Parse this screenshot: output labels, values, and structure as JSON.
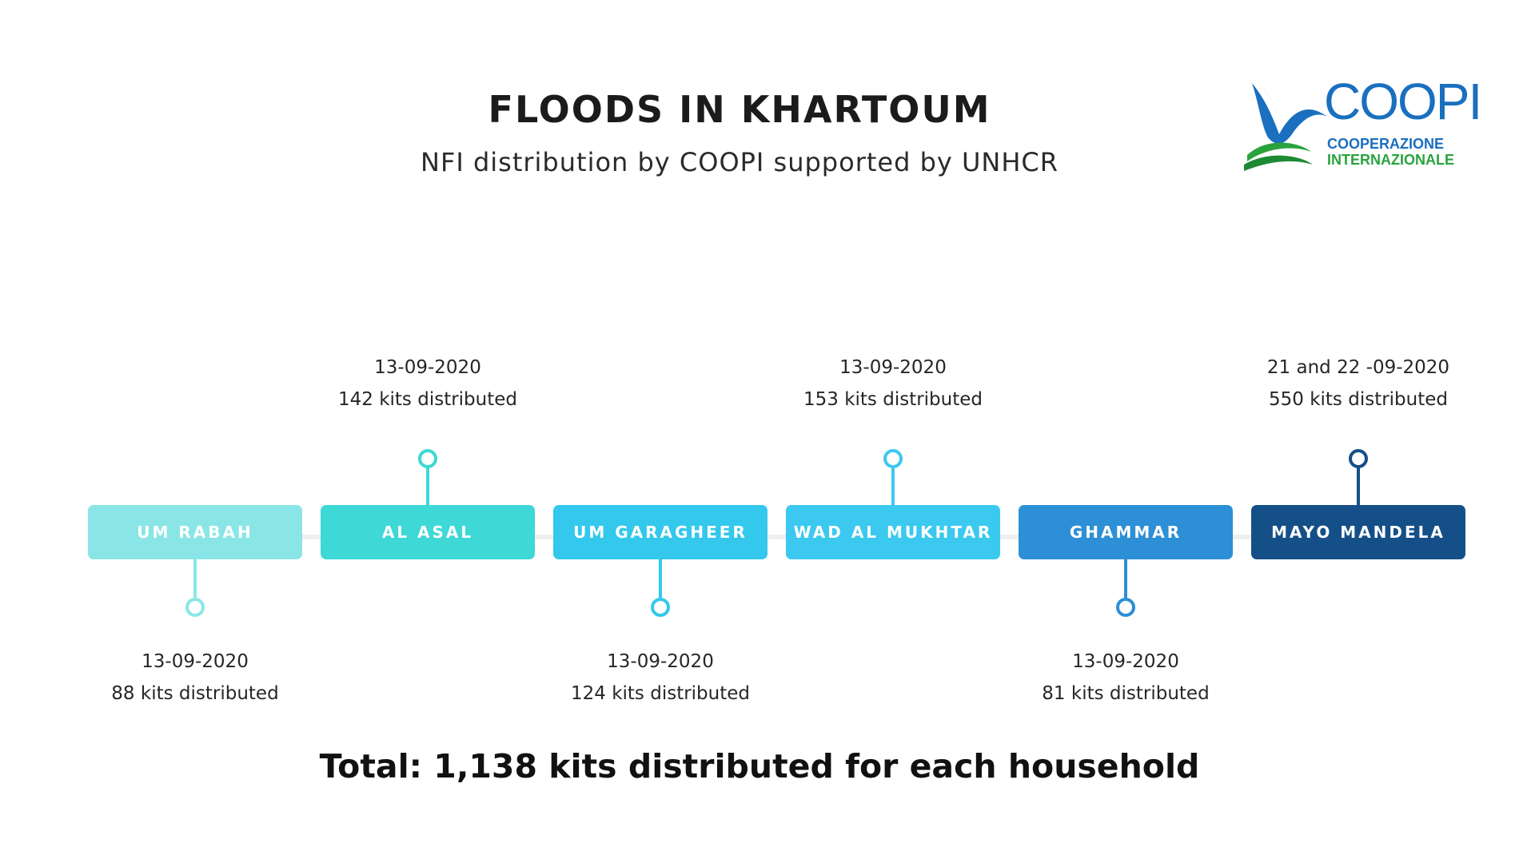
{
  "title": "FLOODS IN KHARTOUM",
  "subtitle": "NFI distribution by COOPI supported by UNHCR",
  "logo": {
    "word": "COOPI",
    "line1": "COOPERAZIONE",
    "line2": "INTERNAZIONALE",
    "colors": {
      "blue": "#1a6fbf",
      "green": "#2aa33e"
    }
  },
  "timeline": [
    {
      "name": "UM RABAH",
      "date": "13-09-2020",
      "kits": "88 kits distributed",
      "position": "below",
      "color": "#8ae6e6"
    },
    {
      "name": "AL ASAL",
      "date": "13-09-2020",
      "kits": "142 kits distributed",
      "position": "above",
      "color": "#3ed8d6"
    },
    {
      "name": "UM GARAGHEER",
      "date": "13-09-2020",
      "kits": "124 kits distributed",
      "position": "below",
      "color": "#33c8ec"
    },
    {
      "name": "WAD AL MUKHTAR",
      "date": "13-09-2020",
      "kits": "153 kits distributed",
      "position": "above",
      "color": "#3cc9ef"
    },
    {
      "name": "GHAMMAR",
      "date": "13-09-2020",
      "kits": "81 kits distributed",
      "position": "below",
      "color": "#2d8fd6"
    },
    {
      "name": "MAYO MANDELA",
      "date": "21 and 22 -09-2020",
      "kits": "550 kits distributed",
      "position": "above",
      "color": "#154f88"
    }
  ],
  "total": "Total: 1,138 kits distributed for each household"
}
